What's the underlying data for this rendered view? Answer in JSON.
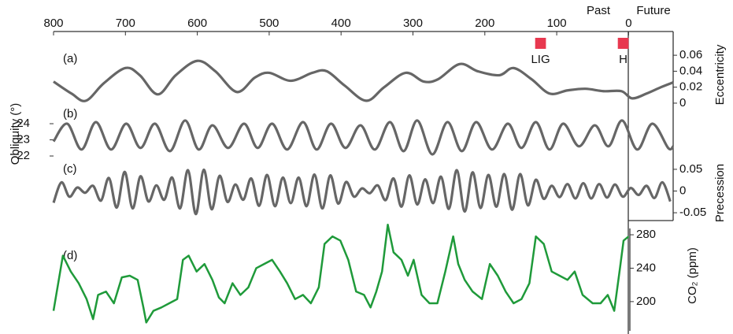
{
  "chart_data": [
    {
      "type": "line",
      "label": "(a)",
      "ylabel": "Eccentricity",
      "yaxis": "right",
      "color": "#666666",
      "past_label": "Past",
      "future_label": "Future",
      "markers": [
        {
          "label": "LIG",
          "xrange": [
            130,
            115
          ],
          "color": "#e8384f"
        },
        {
          "label": "H",
          "xrange": [
            15,
            0
          ],
          "color": "#e8384f"
        }
      ],
      "xlim": [
        800,
        -62
      ],
      "xticks": [
        800,
        700,
        600,
        500,
        400,
        300,
        200,
        100,
        0
      ],
      "ylim": [
        -0.004,
        0.07
      ],
      "yticks": [
        0,
        0.02,
        0.04,
        0.06
      ],
      "x": [
        800,
        775,
        755,
        730,
        700,
        680,
        655,
        630,
        600,
        575,
        545,
        520,
        500,
        470,
        440,
        420,
        395,
        365,
        340,
        310,
        285,
        265,
        235,
        210,
        180,
        160,
        135,
        110,
        85,
        60,
        35,
        10,
        -5,
        -25,
        -45,
        -62
      ],
      "values": [
        0.027,
        0.012,
        0.003,
        0.025,
        0.044,
        0.035,
        0.011,
        0.035,
        0.053,
        0.04,
        0.014,
        0.032,
        0.038,
        0.028,
        0.038,
        0.04,
        0.022,
        0.003,
        0.02,
        0.038,
        0.027,
        0.03,
        0.049,
        0.04,
        0.035,
        0.044,
        0.03,
        0.012,
        0.016,
        0.018,
        0.015,
        0.015,
        0.006,
        0.012,
        0.02,
        0.026
      ]
    },
    {
      "type": "line",
      "label": "(b)",
      "ylabel": "Obliquity (°)",
      "yaxis": "left",
      "color": "#666666",
      "xlim": [
        800,
        -62
      ],
      "ylim": [
        21.66,
        24.83
      ],
      "yticks": [
        22,
        23,
        24
      ],
      "x": [
        800,
        781,
        761,
        741,
        720,
        699,
        679,
        659,
        638,
        617,
        598,
        579,
        557,
        535,
        516,
        496,
        475,
        453,
        434,
        414,
        394,
        373,
        353,
        332,
        313,
        294,
        273,
        252,
        232,
        212,
        190,
        168,
        149,
        129,
        110,
        91,
        69,
        47,
        28,
        9,
        -12,
        -33,
        -55,
        -62
      ],
      "values": [
        22.9,
        24.0,
        22.4,
        24.1,
        22.4,
        24.0,
        22.5,
        24.0,
        22.3,
        24.2,
        22.4,
        23.9,
        22.5,
        24.0,
        22.5,
        24.0,
        22.4,
        24.1,
        22.4,
        24.0,
        22.5,
        23.9,
        22.4,
        24.1,
        22.3,
        24.2,
        22.1,
        24.1,
        22.3,
        24.1,
        22.4,
        24.0,
        22.5,
        24.1,
        22.4,
        24.0,
        22.6,
        23.9,
        22.6,
        24.2,
        22.4,
        24.0,
        22.5,
        22.6
      ]
    },
    {
      "type": "line",
      "label": "(c)",
      "ylabel": "Precession",
      "yaxis": "right",
      "color": "#666666",
      "xlim": [
        800,
        -62
      ],
      "ylim": [
        -0.068,
        0.068
      ],
      "yticks": [
        -0.05,
        0,
        0.05
      ],
      "x": [
        800,
        789,
        778,
        767,
        756,
        745,
        734,
        723,
        712,
        701,
        690,
        679,
        668,
        657,
        646,
        635,
        624,
        613,
        602,
        591,
        580,
        569,
        558,
        547,
        536,
        525,
        514,
        503,
        492,
        481,
        470,
        459,
        448,
        437,
        426,
        415,
        404,
        393,
        382,
        371,
        360,
        349,
        338,
        327,
        316,
        305,
        294,
        283,
        272,
        261,
        250,
        239,
        228,
        217,
        206,
        195,
        184,
        173,
        162,
        151,
        140,
        129,
        118,
        107,
        96,
        85,
        74,
        63,
        52,
        41,
        30,
        19,
        8,
        -3,
        -14,
        -25,
        -36,
        -47,
        -58
      ],
      "values": [
        -0.027,
        0.02,
        -0.013,
        0.008,
        -0.004,
        0.012,
        -0.022,
        0.03,
        -0.038,
        0.044,
        -0.04,
        0.034,
        -0.024,
        0.013,
        -0.02,
        0.031,
        -0.04,
        0.048,
        -0.053,
        0.049,
        -0.042,
        0.035,
        -0.025,
        0.015,
        -0.02,
        0.029,
        -0.034,
        0.037,
        -0.035,
        0.031,
        -0.028,
        0.031,
        -0.035,
        0.038,
        -0.04,
        0.036,
        -0.029,
        0.021,
        -0.013,
        0.006,
        -0.005,
        0.013,
        -0.021,
        0.029,
        -0.036,
        0.036,
        -0.031,
        0.027,
        -0.028,
        0.033,
        -0.041,
        0.048,
        -0.047,
        0.043,
        -0.039,
        0.037,
        -0.036,
        0.039,
        -0.043,
        0.039,
        -0.033,
        0.026,
        -0.018,
        0.012,
        -0.014,
        0.016,
        -0.017,
        0.018,
        -0.017,
        0.016,
        -0.015,
        0.015,
        -0.013,
        0.007,
        -0.009,
        0.012,
        -0.016,
        0.02,
        -0.024
      ]
    },
    {
      "type": "line",
      "label": "(d)",
      "ylabel": "CO₂ (ppm)",
      "yaxis": "right",
      "color": "#1f9a3a",
      "xlim": [
        800,
        -62
      ],
      "ylim": [
        165,
        297
      ],
      "yticks": [
        200,
        240,
        280
      ],
      "x": [
        800,
        787,
        776,
        765,
        754,
        745,
        738,
        727,
        716,
        705,
        694,
        683,
        675,
        671,
        661,
        650,
        639,
        628,
        620,
        612,
        601,
        590,
        579,
        570,
        562,
        551,
        540,
        529,
        518,
        507,
        496,
        485,
        475,
        464,
        453,
        442,
        431,
        423,
        412,
        401,
        390,
        379,
        368,
        359,
        351,
        343,
        335,
        327,
        316,
        307,
        299,
        288,
        277,
        266,
        255,
        244,
        237,
        228,
        217,
        204,
        193,
        182,
        171,
        160,
        149,
        138,
        129,
        118,
        107,
        96,
        85,
        75,
        64,
        50,
        39,
        29,
        20,
        12,
        7,
        0
      ],
      "values": [
        189,
        255,
        236,
        222,
        203,
        179,
        208,
        212,
        198,
        229,
        231,
        226,
        193,
        175,
        189,
        193,
        198,
        203,
        250,
        255,
        236,
        245,
        226,
        205,
        198,
        222,
        208,
        217,
        240,
        245,
        250,
        236,
        222,
        203,
        208,
        198,
        217,
        269,
        278,
        273,
        250,
        212,
        208,
        193,
        212,
        236,
        292,
        259,
        250,
        231,
        250,
        208,
        198,
        198,
        236,
        278,
        245,
        226,
        212,
        203,
        245,
        231,
        212,
        198,
        203,
        222,
        278,
        269,
        236,
        231,
        226,
        236,
        208,
        198,
        198,
        208,
        189,
        240,
        273,
        278
      ]
    }
  ]
}
